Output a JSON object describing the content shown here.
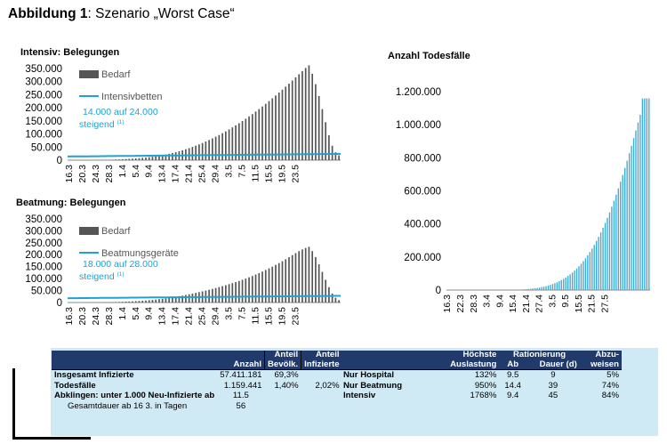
{
  "figure": {
    "label": "Abbildung 1",
    "caption": ": Szenario „Worst Case“"
  },
  "colors": {
    "bar_dark": "#555555",
    "capacity_line": "#21a0d2",
    "deaths_bar": "#3aaad8",
    "annotation": "#21a0d2",
    "table_header": "#1f3a6b",
    "table_bg": "#cfeaf5"
  },
  "chart_data": [
    {
      "type": "bar",
      "title": "Intensiv: Belegungen",
      "x_tick_labels": [
        "16.3",
        "20.3",
        "24.3",
        "28.3",
        "1.4",
        "5.4",
        "9.4",
        "13.4",
        "17.4",
        "21.4",
        "25.4",
        "29.4",
        "3.5",
        "7.5",
        "11.5",
        "15.5",
        "19.5",
        "23.5"
      ],
      "x_start": "16.3",
      "x_step_days": 1,
      "y_tick_labels": [
        "0",
        "50.000",
        "100.000",
        "150.000",
        "200.000",
        "250.000",
        "300.000",
        "350.000"
      ],
      "ylim": [
        0,
        375000
      ],
      "legend": [
        "Bedarf",
        "Intensivbetten"
      ],
      "annotation": [
        "14.000 auf 24.000",
        "steigend"
      ],
      "annotation_sup": "(1)",
      "series": [
        {
          "name": "Bedarf",
          "type": "bar",
          "values": [
            0,
            0,
            0,
            0,
            100,
            200,
            300,
            400,
            500,
            700,
            900,
            1200,
            1500,
            1900,
            2400,
            3000,
            3600,
            4300,
            5000,
            5800,
            6700,
            7700,
            8800,
            10000,
            11500,
            13000,
            14800,
            16800,
            19000,
            21500,
            24200,
            27200,
            30500,
            34000,
            37800,
            41800,
            46000,
            50500,
            55200,
            60200,
            65500,
            71000,
            77000,
            83000,
            89500,
            96000,
            103000,
            110000,
            117500,
            125000,
            133000,
            141000,
            149500,
            158000,
            167000,
            176000,
            185500,
            195000,
            205000,
            215000,
            225500,
            236000,
            247000,
            258000,
            269000,
            280500,
            292000,
            304000,
            316000,
            328000,
            340000,
            352000,
            362000,
            330000,
            290000,
            245000,
            195000,
            145000,
            95000,
            55000,
            30000,
            18000
          ]
        },
        {
          "name": "Intensivbetten",
          "type": "line",
          "from": 14000,
          "to": 24000
        }
      ]
    },
    {
      "type": "bar",
      "title": "Beatmung: Belegungen",
      "x_tick_labels": [
        "16.3",
        "20.3",
        "24.3",
        "28.3",
        "1.4",
        "5.4",
        "9.4",
        "13.4",
        "17.4",
        "21.4",
        "25.4",
        "29.4",
        "3.5",
        "7.5",
        "11.5",
        "15.5",
        "19.5",
        "23.5"
      ],
      "x_start": "16.3",
      "x_step_days": 1,
      "y_tick_labels": [
        "0",
        "50.000",
        "100.000",
        "150.000",
        "200.000",
        "250.000",
        "300.000",
        "350.000"
      ],
      "ylim": [
        0,
        375000
      ],
      "legend": [
        "Bedarf",
        "Beatmungsgeräte"
      ],
      "annotation": [
        "18.000 auf 28.000",
        "steigend"
      ],
      "annotation_sup": "(1)",
      "series": [
        {
          "name": "Bedarf",
          "type": "bar",
          "values": [
            0,
            0,
            0,
            0,
            100,
            150,
            250,
            350,
            450,
            600,
            750,
            1000,
            1250,
            1600,
            2000,
            2500,
            3000,
            3600,
            4200,
            4900,
            5700,
            6500,
            7400,
            8400,
            9600,
            10900,
            12300,
            13900,
            15600,
            17500,
            19500,
            21700,
            24000,
            26500,
            29000,
            31700,
            34500,
            37400,
            40400,
            43500,
            46700,
            50000,
            53500,
            57000,
            60700,
            64500,
            68500,
            72500,
            76700,
            81000,
            85500,
            90000,
            95000,
            100000,
            105500,
            111000,
            117000,
            123000,
            129500,
            136000,
            143000,
            150000,
            157500,
            165000,
            173000,
            181000,
            189500,
            198000,
            206500,
            215000,
            222000,
            228000,
            233000,
            215000,
            190000,
            160000,
            128000,
            95000,
            64000,
            38000,
            20000,
            10000
          ]
        },
        {
          "name": "Beatmungsgeräte",
          "type": "line",
          "from": 18000,
          "to": 28000
        }
      ]
    },
    {
      "type": "bar",
      "title": "Anzahl Todesfälle",
      "x_tick_labels": [
        "16.3",
        "22.3",
        "28.3",
        "3.4",
        "9.4",
        "15.4",
        "21.4",
        "27.4",
        "3.5",
        "9.5",
        "15.5",
        "21.5",
        "27.5"
      ],
      "x_start": "16.3",
      "x_step_days": 1,
      "y_tick_labels": [
        "0",
        "200.000",
        "400.000",
        "600.000",
        "800.000",
        "1.000.000",
        "1.200.000"
      ],
      "ylim": [
        0,
        1300000
      ],
      "series": [
        {
          "name": "Todesfälle",
          "type": "bar",
          "values": [
            0,
            0,
            0,
            0,
            0,
            0,
            0,
            0,
            0,
            0,
            0,
            0,
            0,
            0,
            0,
            0,
            0,
            0,
            0,
            0,
            0,
            0,
            0,
            0,
            0,
            0,
            0,
            0,
            0,
            0,
            500,
            1000,
            1600,
            2300,
            3100,
            4000,
            5000,
            6200,
            7600,
            9200,
            11000,
            13000,
            15300,
            17900,
            20800,
            24100,
            27800,
            31900,
            36500,
            41600,
            47300,
            53600,
            60500,
            68100,
            76500,
            85600,
            95500,
            106300,
            118000,
            130700,
            144400,
            159200,
            175100,
            192200,
            210500,
            230100,
            251000,
            273300,
            297000,
            322100,
            348700,
            376800,
            406400,
            437500,
            470100,
            504200,
            539800,
            576900,
            615400,
            655300,
            696500,
            739000,
            782600,
            827300,
            872900,
            919200,
            966100,
            1013300,
            1060500,
            1159441,
            1159441,
            1159441,
            1159441
          ]
        }
      ]
    }
  ],
  "table_left": {
    "headers": {
      "anzahl": "Anzahl",
      "anteil_bevoelk_1": "Anteil",
      "anteil_bevoelk_2": "Bevölk.",
      "anteil_inf_1": "Anteil",
      "anteil_inf_2": "Infizierte"
    },
    "rows": [
      {
        "label": "Insgesamt Infizierte",
        "anzahl": "57.411.181",
        "anteil_bevoelk": "69,3%",
        "anteil_inf": ""
      },
      {
        "label": "Todesfälle",
        "anzahl": "1.159.441",
        "anteil_bevoelk": "1,40%",
        "anteil_inf": "2,02%"
      },
      {
        "label": "Abklingen: unter 1.000 Neu-Infizierte ab",
        "anzahl": "11.5",
        "anteil_bevoelk": "",
        "anteil_inf": ""
      },
      {
        "label": "Gesamtdauer ab 16 3. in Tagen",
        "anzahl": "56",
        "anteil_bevoelk": "",
        "anteil_inf": ""
      }
    ]
  },
  "table_right": {
    "headers": {
      "hoechste_1": "Höchste",
      "hoechste_2": "Auslastung",
      "rationierung": "Rationierung",
      "ab": "Ab",
      "dauer": "Dauer (d)",
      "abzu_1": "Abzu-",
      "abzu_2": "weisen"
    },
    "rows": [
      {
        "label": "Nur Hospital",
        "hoechste": "132%",
        "ab": "9.5",
        "dauer": "9",
        "abzu": "5%"
      },
      {
        "label": "Nur Beatmung",
        "hoechste": "950%",
        "ab": "14.4",
        "dauer": "39",
        "abzu": "74%"
      },
      {
        "label": "Intensiv",
        "hoechste": "1768%",
        "ab": "9.4",
        "dauer": "45",
        "abzu": "84%"
      }
    ]
  }
}
